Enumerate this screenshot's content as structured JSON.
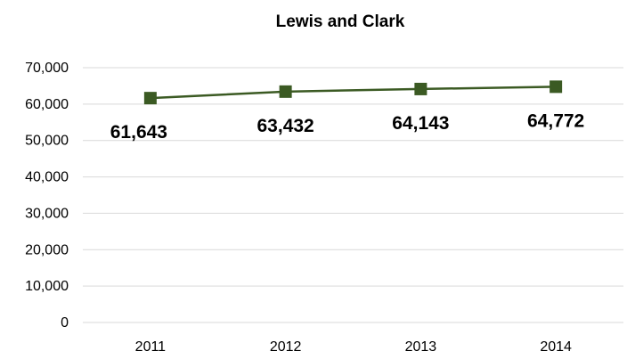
{
  "chart_data": {
    "type": "line",
    "title": "Lewis and Clark",
    "xlabel": "",
    "ylabel": "",
    "categories": [
      "2011",
      "2012",
      "2013",
      "2014"
    ],
    "series": [
      {
        "values": [
          61643,
          63432,
          64143,
          64772
        ],
        "data_labels": [
          "61,643",
          "63,432",
          "64,143",
          "64,772"
        ],
        "color": "#3b5a23",
        "marker": "square"
      }
    ],
    "ylim": [
      0,
      70000
    ],
    "y_ticks": [
      0,
      10000,
      20000,
      30000,
      40000,
      50000,
      60000,
      70000
    ],
    "y_tick_labels": [
      "0",
      "10,000",
      "20,000",
      "30,000",
      "40,000",
      "50,000",
      "60,000",
      "70,000"
    ],
    "grid": true,
    "legend": "none"
  }
}
